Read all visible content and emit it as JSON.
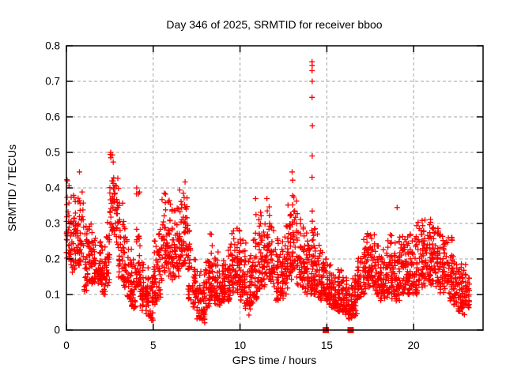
{
  "chart_data": {
    "type": "scatter",
    "title": "Day 346 of 2025, SRMTID for receiver bboo",
    "xlabel": "GPS time / hours",
    "ylabel": "SRMTID / TECUs",
    "xlim": [
      0,
      24
    ],
    "ylim": [
      0,
      0.8
    ],
    "xticks": {
      "values": [
        0,
        5,
        10,
        15,
        20
      ],
      "labels": [
        "0",
        "5",
        "10",
        "15",
        "20"
      ]
    },
    "yticks": {
      "values": [
        0,
        0.1,
        0.2,
        0.3,
        0.4,
        0.5,
        0.6,
        0.7,
        0.8
      ],
      "labels": [
        "0",
        "0.1",
        "0.2",
        "0.3",
        "0.4",
        "0.5",
        "0.6",
        "0.7",
        "0.8"
      ]
    },
    "grid": true,
    "legend_position": "none",
    "background_color": "#ffffff",
    "axis_color": "#000000",
    "grid_color": "#a6a6a6",
    "marker": {
      "shape": "plus",
      "color": "#ff0000",
      "size": 7
    },
    "zero_marker": {
      "shape": "filled-square",
      "color": "#ff0000",
      "size": 8
    },
    "data_start_hour": 0.0,
    "data_end_hour": 23.2,
    "segment_hours": 0.25,
    "seed": 346,
    "envelope": [
      [
        0.0,
        0.2,
        0.43
      ],
      [
        0.25,
        0.16,
        0.38
      ],
      [
        0.5,
        0.18,
        0.4
      ],
      [
        0.75,
        0.17,
        0.41
      ],
      [
        1.0,
        0.1,
        0.31
      ],
      [
        1.25,
        0.13,
        0.31
      ],
      [
        1.5,
        0.13,
        0.28
      ],
      [
        1.75,
        0.13,
        0.26
      ],
      [
        2.0,
        0.1,
        0.25
      ],
      [
        2.25,
        0.12,
        0.31
      ],
      [
        2.5,
        0.27,
        0.5
      ],
      [
        2.75,
        0.24,
        0.44
      ],
      [
        3.0,
        0.14,
        0.37
      ],
      [
        3.25,
        0.12,
        0.33
      ],
      [
        3.5,
        0.08,
        0.23
      ],
      [
        3.75,
        0.06,
        0.2
      ],
      [
        4.0,
        0.12,
        0.39
      ],
      [
        4.25,
        0.05,
        0.21
      ],
      [
        4.5,
        0.04,
        0.18
      ],
      [
        4.75,
        0.02,
        0.15
      ],
      [
        5.0,
        0.07,
        0.26
      ],
      [
        5.25,
        0.09,
        0.3
      ],
      [
        5.5,
        0.15,
        0.41
      ],
      [
        5.75,
        0.15,
        0.38
      ],
      [
        6.0,
        0.14,
        0.34
      ],
      [
        6.25,
        0.15,
        0.35
      ],
      [
        6.5,
        0.18,
        0.4
      ],
      [
        6.75,
        0.18,
        0.42
      ],
      [
        7.0,
        0.08,
        0.3
      ],
      [
        7.25,
        0.06,
        0.2
      ],
      [
        7.5,
        0.03,
        0.18
      ],
      [
        7.75,
        0.02,
        0.16
      ],
      [
        8.0,
        0.06,
        0.21
      ],
      [
        8.25,
        0.08,
        0.28
      ],
      [
        8.5,
        0.07,
        0.22
      ],
      [
        8.75,
        0.07,
        0.19
      ],
      [
        9.0,
        0.08,
        0.21
      ],
      [
        9.25,
        0.08,
        0.25
      ],
      [
        9.5,
        0.1,
        0.28
      ],
      [
        9.75,
        0.1,
        0.31
      ],
      [
        10.0,
        0.08,
        0.27
      ],
      [
        10.25,
        0.06,
        0.25
      ],
      [
        10.5,
        0.04,
        0.22
      ],
      [
        10.75,
        0.08,
        0.28
      ],
      [
        11.0,
        0.1,
        0.34
      ],
      [
        11.25,
        0.12,
        0.31
      ],
      [
        11.5,
        0.14,
        0.35
      ],
      [
        11.75,
        0.12,
        0.3
      ],
      [
        12.0,
        0.08,
        0.26
      ],
      [
        12.25,
        0.08,
        0.25
      ],
      [
        12.5,
        0.1,
        0.3
      ],
      [
        12.75,
        0.14,
        0.38
      ],
      [
        13.0,
        0.17,
        0.43
      ],
      [
        13.25,
        0.12,
        0.35
      ],
      [
        13.5,
        0.12,
        0.31
      ],
      [
        13.75,
        0.1,
        0.28
      ],
      [
        14.0,
        0.1,
        0.33
      ],
      [
        14.25,
        0.1,
        0.3
      ],
      [
        14.5,
        0.08,
        0.24
      ],
      [
        14.75,
        0.08,
        0.22
      ],
      [
        15.0,
        0.07,
        0.19
      ],
      [
        15.25,
        0.06,
        0.17
      ],
      [
        15.5,
        0.05,
        0.17
      ],
      [
        15.75,
        0.05,
        0.17
      ],
      [
        16.0,
        0.04,
        0.15
      ],
      [
        16.25,
        0.03,
        0.13
      ],
      [
        16.5,
        0.04,
        0.16
      ],
      [
        16.75,
        0.08,
        0.21
      ],
      [
        17.0,
        0.1,
        0.27
      ],
      [
        17.25,
        0.12,
        0.31
      ],
      [
        17.5,
        0.12,
        0.3
      ],
      [
        17.75,
        0.1,
        0.26
      ],
      [
        18.0,
        0.08,
        0.23
      ],
      [
        18.25,
        0.08,
        0.24
      ],
      [
        18.5,
        0.1,
        0.28
      ],
      [
        18.75,
        0.08,
        0.25
      ],
      [
        19.0,
        0.08,
        0.28
      ],
      [
        19.25,
        0.1,
        0.27
      ],
      [
        19.5,
        0.1,
        0.28
      ],
      [
        19.75,
        0.1,
        0.29
      ],
      [
        20.0,
        0.1,
        0.3
      ],
      [
        20.25,
        0.12,
        0.31
      ],
      [
        20.5,
        0.12,
        0.31
      ],
      [
        20.75,
        0.13,
        0.32
      ],
      [
        21.0,
        0.12,
        0.3
      ],
      [
        21.25,
        0.12,
        0.29
      ],
      [
        21.5,
        0.1,
        0.28
      ],
      [
        21.75,
        0.1,
        0.27
      ],
      [
        22.0,
        0.08,
        0.28
      ],
      [
        22.25,
        0.07,
        0.22
      ],
      [
        22.5,
        0.05,
        0.2
      ],
      [
        22.75,
        0.04,
        0.19
      ],
      [
        23.0,
        0.06,
        0.17
      ]
    ],
    "extra_points": [
      [
        0.05,
        0.42
      ],
      [
        0.75,
        0.445
      ],
      [
        2.55,
        0.5
      ],
      [
        2.56,
        0.485
      ],
      [
        4.05,
        0.4
      ],
      [
        10.9,
        0.37
      ],
      [
        10.92,
        0.325
      ],
      [
        11.55,
        0.37
      ],
      [
        13.0,
        0.445
      ],
      [
        14.15,
        0.755
      ],
      [
        14.16,
        0.745
      ],
      [
        14.15,
        0.73
      ],
      [
        14.16,
        0.7
      ],
      [
        14.15,
        0.655
      ],
      [
        14.17,
        0.575
      ],
      [
        14.16,
        0.49
      ],
      [
        14.15,
        0.43
      ],
      [
        14.16,
        0.335
      ],
      [
        19.05,
        0.345
      ]
    ],
    "zero_markers": [
      14.94,
      16.37
    ]
  }
}
